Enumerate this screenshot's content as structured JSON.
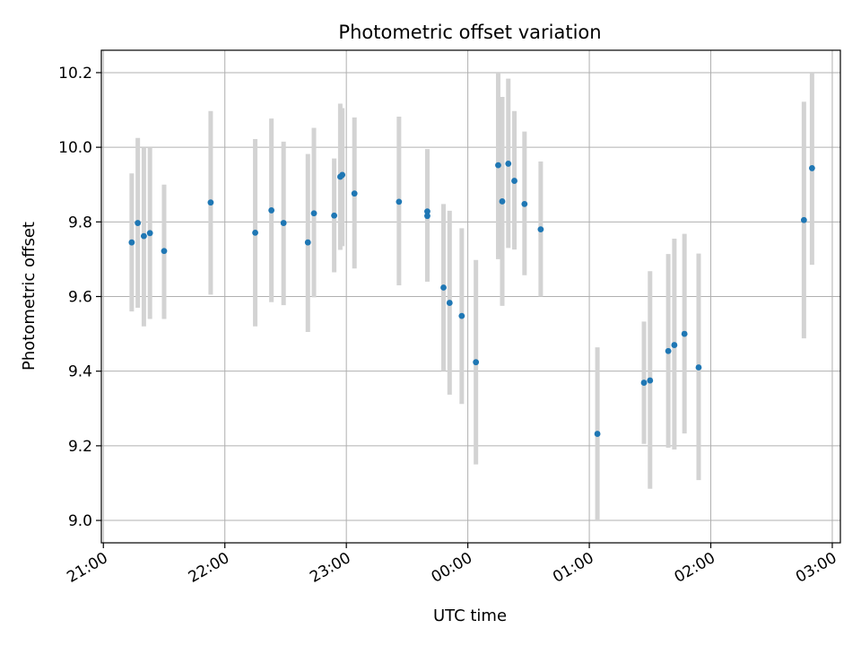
{
  "chart_data": {
    "type": "scatter",
    "title": "Photometric offset variation",
    "xlabel": "UTC time",
    "ylabel": "Photometric offset",
    "x_tick_labels": [
      "21:00",
      "22:00",
      "23:00",
      "00:00",
      "01:00",
      "02:00",
      "03:00"
    ],
    "y_tick_labels": [
      "9.0",
      "9.2",
      "9.4",
      "9.6",
      "9.8",
      "10.0",
      "10.2"
    ],
    "xlim": [
      "20:59",
      "03:04"
    ],
    "ylim": [
      8.94,
      10.26
    ],
    "grid": true,
    "colors": {
      "points": "#1f77b4",
      "error_bars": "#d3d3d3",
      "grid": "#b0b0b0"
    },
    "points": [
      {
        "x": "21:14",
        "y": 9.745,
        "err_low": 9.56,
        "err_high": 9.93
      },
      {
        "x": "21:17",
        "y": 9.797,
        "err_low": 9.57,
        "err_high": 10.025
      },
      {
        "x": "21:20",
        "y": 9.762,
        "err_low": 9.52,
        "err_high": 10.0
      },
      {
        "x": "21:23",
        "y": 9.77,
        "err_low": 9.54,
        "err_high": 10.0
      },
      {
        "x": "21:30",
        "y": 9.722,
        "err_low": 9.54,
        "err_high": 9.9
      },
      {
        "x": "21:53",
        "y": 9.852,
        "err_low": 9.605,
        "err_high": 10.097
      },
      {
        "x": "22:15",
        "y": 9.771,
        "err_low": 9.52,
        "err_high": 10.022
      },
      {
        "x": "22:23",
        "y": 9.831,
        "err_low": 9.585,
        "err_high": 10.077
      },
      {
        "x": "22:29",
        "y": 9.797,
        "err_low": 9.577,
        "err_high": 10.015
      },
      {
        "x": "22:41",
        "y": 9.745,
        "err_low": 9.505,
        "err_high": 9.982
      },
      {
        "x": "22:44",
        "y": 9.823,
        "err_low": 9.598,
        "err_high": 10.052
      },
      {
        "x": "22:54",
        "y": 9.817,
        "err_low": 9.665,
        "err_high": 9.97
      },
      {
        "x": "22:57",
        "y": 9.921,
        "err_low": 9.725,
        "err_high": 10.117
      },
      {
        "x": "22:58",
        "y": 9.926,
        "err_low": 9.735,
        "err_high": 10.105
      },
      {
        "x": "23:04",
        "y": 9.876,
        "err_low": 9.675,
        "err_high": 10.08
      },
      {
        "x": "23:26",
        "y": 9.854,
        "err_low": 9.63,
        "err_high": 10.082
      },
      {
        "x": "23:40",
        "y": 9.828,
        "err_low": 9.64,
        "err_high": 9.995
      },
      {
        "x": "23:40",
        "y": 9.816,
        "err_low": 9.64,
        "err_high": 9.995
      },
      {
        "x": "23:48",
        "y": 9.624,
        "err_low": 9.4,
        "err_high": 9.848
      },
      {
        "x": "23:51",
        "y": 9.583,
        "err_low": 9.337,
        "err_high": 9.83
      },
      {
        "x": "23:57",
        "y": 9.548,
        "err_low": 9.312,
        "err_high": 9.783
      },
      {
        "x": "00:04",
        "y": 9.424,
        "err_low": 9.15,
        "err_high": 9.698
      },
      {
        "x": "00:15",
        "y": 9.952,
        "err_low": 9.7,
        "err_high": 10.2
      },
      {
        "x": "00:17",
        "y": 9.855,
        "err_low": 9.575,
        "err_high": 10.135
      },
      {
        "x": "00:20",
        "y": 9.956,
        "err_low": 9.73,
        "err_high": 10.184
      },
      {
        "x": "00:23",
        "y": 9.91,
        "err_low": 9.726,
        "err_high": 10.097
      },
      {
        "x": "00:28",
        "y": 9.848,
        "err_low": 9.657,
        "err_high": 10.042
      },
      {
        "x": "00:36",
        "y": 9.78,
        "err_low": 9.6,
        "err_high": 9.962
      },
      {
        "x": "01:04",
        "y": 9.232,
        "err_low": 9.0,
        "err_high": 9.464
      },
      {
        "x": "01:27",
        "y": 9.369,
        "err_low": 9.205,
        "err_high": 9.533
      },
      {
        "x": "01:30",
        "y": 9.375,
        "err_low": 9.085,
        "err_high": 9.668
      },
      {
        "x": "01:39",
        "y": 9.454,
        "err_low": 9.195,
        "err_high": 9.714
      },
      {
        "x": "01:42",
        "y": 9.47,
        "err_low": 9.19,
        "err_high": 9.755
      },
      {
        "x": "01:47",
        "y": 9.5,
        "err_low": 9.233,
        "err_high": 9.768
      },
      {
        "x": "01:54",
        "y": 9.41,
        "err_low": 9.108,
        "err_high": 9.715
      },
      {
        "x": "02:46",
        "y": 9.805,
        "err_low": 9.488,
        "err_high": 10.122
      },
      {
        "x": "02:50",
        "y": 9.944,
        "err_low": 9.685,
        "err_high": 10.2
      }
    ]
  }
}
